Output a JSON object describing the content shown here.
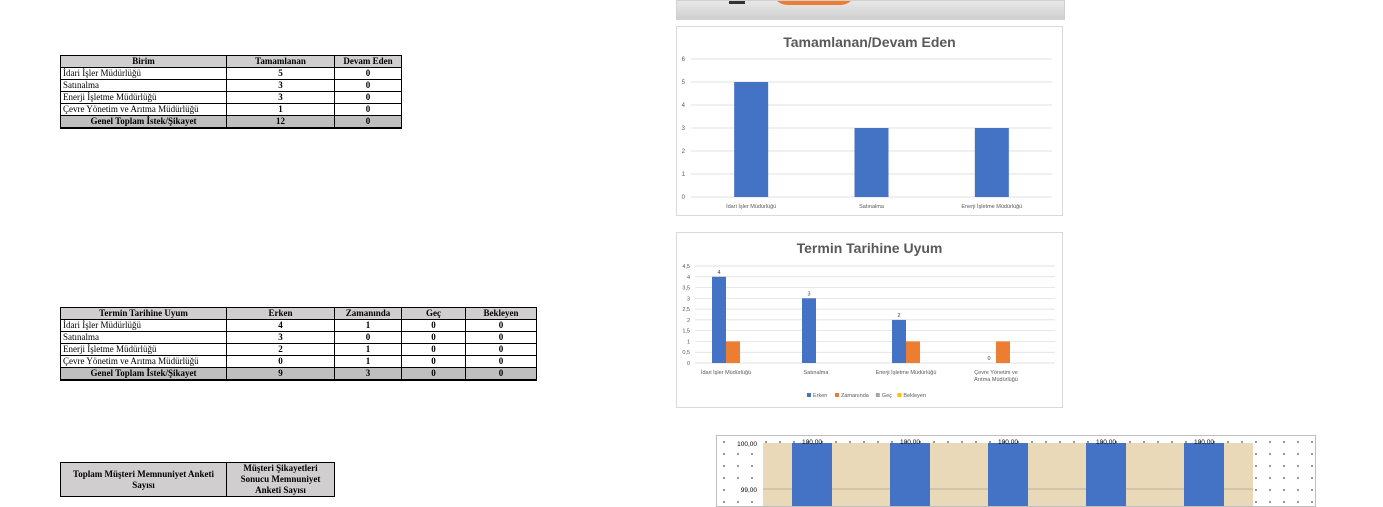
{
  "table1": {
    "headers": [
      "Birim",
      "Tamamlanan",
      "Devam Eden"
    ],
    "rows": [
      [
        "İdari İşler Müdürlüğü",
        "5",
        "0"
      ],
      [
        "Satınalma",
        "3",
        "0"
      ],
      [
        "Enerji İşletme Müdürlüğü",
        "3",
        "0"
      ],
      [
        "Çevre Yönetim ve Arıtma Müdürlüğü",
        "1",
        "0"
      ]
    ],
    "total": [
      "Genel Toplam İstek/Şikayet",
      "12",
      "0"
    ]
  },
  "table2": {
    "headers": [
      "Termin Tarihine Uyum",
      "Erken",
      "Zamanında",
      "Geç",
      "Bekleyen"
    ],
    "rows": [
      [
        "İdari İşler Müdürlüğü",
        "4",
        "1",
        "0",
        "0"
      ],
      [
        "Satınalma",
        "3",
        "0",
        "0",
        "0"
      ],
      [
        "Enerji İşletme Müdürlüğü",
        "2",
        "1",
        "0",
        "0"
      ],
      [
        "Çevre Yönetim ve Arıtma Müdürlüğü",
        "0",
        "1",
        "0",
        "0"
      ]
    ],
    "total": [
      "Genel Toplam İstek/Şikayet",
      "9",
      "3",
      "0",
      "0"
    ]
  },
  "table3": {
    "headers": [
      "Toplam Müşteri Memnuniyet Anketi Sayısı",
      "Müşteri Şikayetleri Sonucu Memnuniyet Anketi Sayısı"
    ]
  },
  "colors": {
    "blue": "#4472c4",
    "orange": "#ed7d31",
    "gray": "#a5a5a5",
    "yellow": "#ffc000"
  },
  "chart_data": [
    {
      "type": "bar",
      "title": "Tamamlanan/Devam Eden",
      "categories": [
        "İdari İşler Müdürlüğü",
        "Satınalma",
        "Enerji İşletme Müdürlüğü"
      ],
      "series": [
        {
          "values": [
            5,
            3,
            3
          ],
          "color": "#4472c4"
        }
      ],
      "ylim": [
        0,
        6
      ],
      "yticks": [
        "0",
        "1",
        "2",
        "3",
        "4",
        "5",
        "6"
      ],
      "grid": true
    },
    {
      "type": "bar",
      "title": "Termin Tarihine Uyum",
      "categories": [
        "İdari İşler Müdürlüğü",
        "Satınalma",
        "Enerji İşletme Müdürlüğü",
        "Çevre Yönetim ve Arıtma Müdürlüğü"
      ],
      "series": [
        {
          "name": "Erken",
          "values": [
            4,
            3,
            2,
            0
          ],
          "color": "#4472c4",
          "data_labels": [
            "4",
            "3",
            "2",
            "0"
          ]
        },
        {
          "name": "Zamanında",
          "values": [
            1,
            0,
            1,
            1
          ],
          "color": "#ed7d31"
        },
        {
          "name": "Geç",
          "values": [
            0,
            0,
            0,
            0
          ],
          "color": "#a5a5a5"
        },
        {
          "name": "Bekleyen",
          "values": [
            0,
            0,
            0,
            0
          ],
          "color": "#ffc000"
        }
      ],
      "ylim": [
        0,
        4.5
      ],
      "yticks": [
        "0",
        "0,5",
        "1",
        "1,5",
        "2",
        "2,5",
        "3",
        "3,5",
        "4",
        "4,5"
      ],
      "legend": "bottom",
      "grid": true
    },
    {
      "type": "bar",
      "series": [
        {
          "values": [
            100,
            100,
            100,
            100,
            100
          ],
          "color": "#4472c4",
          "data_labels": [
            "100,00",
            "100,00",
            "100,00",
            "100,00",
            "100,00"
          ]
        }
      ],
      "yticks": [
        "100,00",
        "99,00"
      ]
    }
  ]
}
